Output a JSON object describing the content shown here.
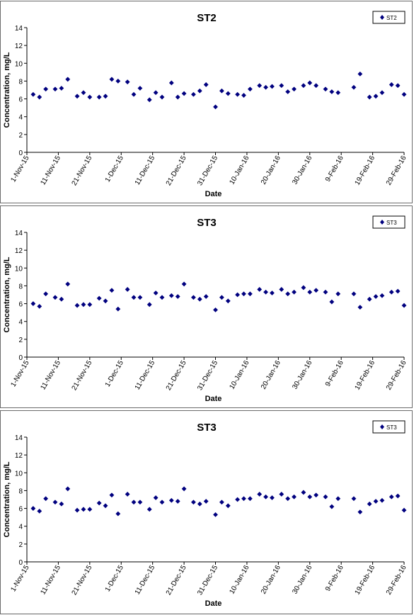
{
  "chart_data": [
    {
      "type": "scatter",
      "title": "ST2",
      "xlabel": "Date",
      "ylabel": "Concentration, mg/L",
      "ylim": [
        0,
        14
      ],
      "yticks": [
        0,
        2,
        4,
        6,
        8,
        10,
        12,
        14
      ],
      "xlim": [
        "2015-11-01",
        "2016-02-29"
      ],
      "xtick_labels": [
        "1-Nov-15",
        "11-Nov-15",
        "21-Nov-15",
        "1-Dec-15",
        "11-Dec-15",
        "21-Dec-15",
        "31-Dec-15",
        "10-Jan-16",
        "20-Jan-16",
        "30-Jan-16",
        "9-Feb-16",
        "19-Feb-16",
        "29-Feb-16"
      ],
      "grid": false,
      "legend_position": "top-right",
      "color": "#00007f",
      "series": [
        {
          "name": "ST2",
          "x": [
            "2015-11-03",
            "2015-11-05",
            "2015-11-07",
            "2015-11-10",
            "2015-11-12",
            "2015-11-14",
            "2015-11-17",
            "2015-11-19",
            "2015-11-21",
            "2015-11-24",
            "2015-11-26",
            "2015-11-28",
            "2015-11-30",
            "2015-12-03",
            "2015-12-05",
            "2015-12-07",
            "2015-12-10",
            "2015-12-12",
            "2015-12-14",
            "2015-12-17",
            "2015-12-19",
            "2015-12-21",
            "2015-12-24",
            "2015-12-26",
            "2015-12-28",
            "2015-12-31",
            "2016-01-02",
            "2016-01-04",
            "2016-01-07",
            "2016-01-09",
            "2016-01-11",
            "2016-01-14",
            "2016-01-16",
            "2016-01-18",
            "2016-01-21",
            "2016-01-23",
            "2016-01-25",
            "2016-01-28",
            "2016-01-30",
            "2016-02-01",
            "2016-02-04",
            "2016-02-06",
            "2016-02-08",
            "2016-02-13",
            "2016-02-15",
            "2016-02-18",
            "2016-02-20",
            "2016-02-22",
            "2016-02-25",
            "2016-02-27",
            "2016-02-29"
          ],
          "y": [
            6.5,
            6.2,
            7.1,
            7.1,
            7.2,
            8.2,
            6.3,
            6.7,
            6.2,
            6.2,
            6.3,
            8.2,
            8.0,
            7.9,
            6.5,
            7.2,
            5.9,
            6.7,
            6.2,
            7.8,
            6.2,
            6.6,
            6.5,
            6.9,
            7.6,
            5.1,
            6.9,
            6.6,
            6.5,
            6.4,
            7.1,
            7.5,
            7.3,
            7.4,
            7.5,
            6.8,
            7.1,
            7.5,
            7.8,
            7.5,
            7.1,
            6.8,
            6.7,
            7.3,
            8.8,
            6.2,
            6.3,
            6.7,
            7.6,
            7.5,
            6.5
          ]
        }
      ]
    },
    {
      "type": "scatter",
      "title": "ST3",
      "xlabel": "Date",
      "ylabel": "Concentration, mg/L",
      "ylim": [
        0,
        14
      ],
      "yticks": [
        0,
        2,
        4,
        6,
        8,
        10,
        12,
        14
      ],
      "xlim": [
        "2015-11-01",
        "2016-02-29"
      ],
      "xtick_labels": [
        "1-Nov-15",
        "11-Nov-15",
        "21-Nov-15",
        "1-Dec-15",
        "11-Dec-15",
        "21-Dec-15",
        "31-Dec-15",
        "10-Jan-16",
        "20-Jan-16",
        "30-Jan-16",
        "9-Feb-16",
        "19-Feb-16",
        "29-Feb-16"
      ],
      "grid": false,
      "legend_position": "top-right",
      "color": "#00007f",
      "series": [
        {
          "name": "ST3",
          "x": [
            "2015-11-03",
            "2015-11-05",
            "2015-11-07",
            "2015-11-10",
            "2015-11-12",
            "2015-11-14",
            "2015-11-17",
            "2015-11-19",
            "2015-11-21",
            "2015-11-24",
            "2015-11-26",
            "2015-11-28",
            "2015-11-30",
            "2015-12-03",
            "2015-12-05",
            "2015-12-07",
            "2015-12-10",
            "2015-12-12",
            "2015-12-14",
            "2015-12-17",
            "2015-12-19",
            "2015-12-21",
            "2015-12-24",
            "2015-12-26",
            "2015-12-28",
            "2015-12-31",
            "2016-01-02",
            "2016-01-04",
            "2016-01-07",
            "2016-01-09",
            "2016-01-11",
            "2016-01-14",
            "2016-01-16",
            "2016-01-18",
            "2016-01-21",
            "2016-01-23",
            "2016-01-25",
            "2016-01-28",
            "2016-01-30",
            "2016-02-01",
            "2016-02-04",
            "2016-02-06",
            "2016-02-08",
            "2016-02-13",
            "2016-02-15",
            "2016-02-18",
            "2016-02-20",
            "2016-02-22",
            "2016-02-25",
            "2016-02-27",
            "2016-02-29"
          ],
          "y": [
            6.0,
            5.7,
            7.1,
            6.7,
            6.5,
            8.2,
            5.8,
            5.9,
            5.9,
            6.6,
            6.3,
            7.5,
            5.4,
            7.6,
            6.7,
            6.7,
            5.9,
            7.2,
            6.7,
            6.9,
            6.8,
            8.2,
            6.7,
            6.5,
            6.8,
            5.3,
            6.7,
            6.3,
            7.0,
            7.1,
            7.1,
            7.6,
            7.3,
            7.2,
            7.6,
            7.1,
            7.3,
            7.8,
            7.3,
            7.5,
            7.3,
            6.2,
            7.1,
            7.1,
            5.6,
            6.5,
            6.8,
            6.9,
            7.3,
            7.4,
            5.8
          ]
        }
      ]
    },
    {
      "type": "scatter",
      "title": "ST3",
      "xlabel": "Date",
      "ylabel": "Concentration, mg/L",
      "ylim": [
        0,
        14
      ],
      "yticks": [
        0,
        2,
        4,
        6,
        8,
        10,
        12,
        14
      ],
      "xlim": [
        "2015-11-01",
        "2016-02-29"
      ],
      "xtick_labels": [
        "1-Nov-15",
        "11-Nov-15",
        "21-Nov-15",
        "1-Dec-15",
        "11-Dec-15",
        "21-Dec-15",
        "31-Dec-15",
        "10-Jan-16",
        "20-Jan-16",
        "30-Jan-16",
        "9-Feb-16",
        "19-Feb-16",
        "29-Feb-16"
      ],
      "grid": false,
      "legend_position": "top-right",
      "color": "#00007f",
      "series": [
        {
          "name": "ST3",
          "x": [
            "2015-11-03",
            "2015-11-05",
            "2015-11-07",
            "2015-11-10",
            "2015-11-12",
            "2015-11-14",
            "2015-11-17",
            "2015-11-19",
            "2015-11-21",
            "2015-11-24",
            "2015-11-26",
            "2015-11-28",
            "2015-11-30",
            "2015-12-03",
            "2015-12-05",
            "2015-12-07",
            "2015-12-10",
            "2015-12-12",
            "2015-12-14",
            "2015-12-17",
            "2015-12-19",
            "2015-12-21",
            "2015-12-24",
            "2015-12-26",
            "2015-12-28",
            "2015-12-31",
            "2016-01-02",
            "2016-01-04",
            "2016-01-07",
            "2016-01-09",
            "2016-01-11",
            "2016-01-14",
            "2016-01-16",
            "2016-01-18",
            "2016-01-21",
            "2016-01-23",
            "2016-01-25",
            "2016-01-28",
            "2016-01-30",
            "2016-02-01",
            "2016-02-04",
            "2016-02-06",
            "2016-02-08",
            "2016-02-13",
            "2016-02-15",
            "2016-02-18",
            "2016-02-20",
            "2016-02-22",
            "2016-02-25",
            "2016-02-27",
            "2016-02-29"
          ],
          "y": [
            6.0,
            5.7,
            7.1,
            6.7,
            6.5,
            8.2,
            5.8,
            5.9,
            5.9,
            6.6,
            6.3,
            7.5,
            5.4,
            7.6,
            6.7,
            6.7,
            5.9,
            7.2,
            6.7,
            6.9,
            6.8,
            8.2,
            6.7,
            6.5,
            6.8,
            5.3,
            6.7,
            6.3,
            7.0,
            7.1,
            7.1,
            7.6,
            7.3,
            7.2,
            7.6,
            7.1,
            7.3,
            7.8,
            7.3,
            7.5,
            7.3,
            6.2,
            7.1,
            7.1,
            5.6,
            6.5,
            6.8,
            6.9,
            7.3,
            7.4,
            5.8
          ]
        }
      ]
    }
  ]
}
